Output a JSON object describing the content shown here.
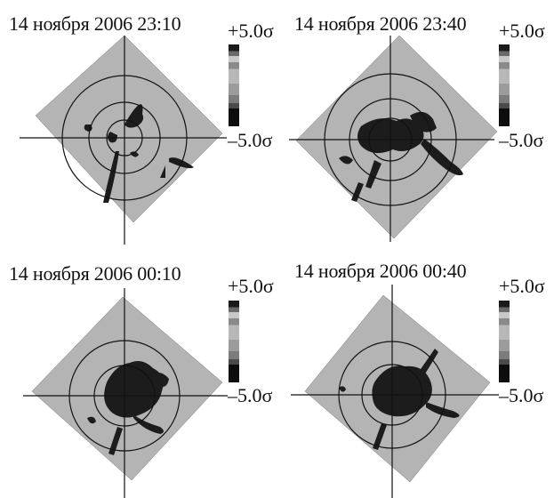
{
  "panels": [
    {
      "title": "14 ноября 2006 23:10",
      "max_label": "+5.0σ",
      "min_label": "–5.0σ"
    },
    {
      "title": "14 ноября 2006 23:40",
      "max_label": "+5.0σ",
      "min_label": "–5.0σ"
    },
    {
      "title": "14 ноября 2006 00:10",
      "max_label": "+5.0σ",
      "min_label": "–5.0σ"
    },
    {
      "title": "14 ноября 2006 00:40",
      "max_label": "+5.0σ",
      "min_label": "–5.0σ"
    }
  ]
}
